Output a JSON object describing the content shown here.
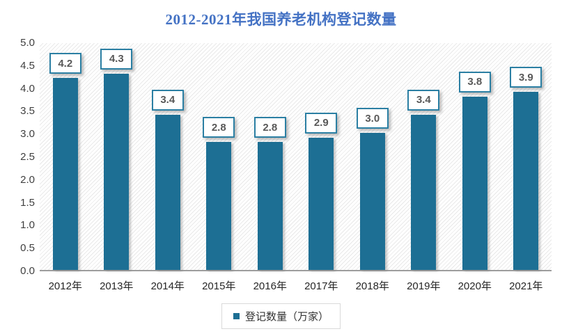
{
  "title": "2012-2021年我国养老机构登记数量",
  "chart_data": {
    "type": "bar",
    "title": "2012-2021年我国养老机构登记数量",
    "categories": [
      "2012年",
      "2013年",
      "2014年",
      "2015年",
      "2016年",
      "2017年",
      "2018年",
      "2019年",
      "2020年",
      "2021年"
    ],
    "values": [
      4.2,
      4.3,
      3.4,
      2.8,
      2.8,
      2.9,
      3.0,
      3.4,
      3.8,
      3.9
    ],
    "data_labels": [
      "4.2",
      "4.3",
      "3.4",
      "2.8",
      "2.8",
      "2.9",
      "3.0",
      "3.4",
      "3.8",
      "3.9"
    ],
    "xlabel": "",
    "ylabel": "",
    "ylim": [
      0,
      5
    ],
    "ytick_step": 0.5,
    "yticks": [
      "5.0",
      "4.5",
      "4.0",
      "3.5",
      "3.0",
      "2.5",
      "2.0",
      "1.5",
      "1.0",
      "0.5",
      "0.0"
    ],
    "grid": false,
    "legend": [
      "登记数量（万家）"
    ],
    "legend_position": "bottom",
    "plot_background": "diagonal-hatch"
  },
  "legend": {
    "label": "登记数量（万家）"
  },
  "colors": {
    "title": "#4472c4",
    "bar": "#1d6f94",
    "label_box_border": "#2b7fa3",
    "label_text": "#595959",
    "axis_line": "#9d9d9d",
    "tick_text": "#404040",
    "legend_border": "#d9d9d9"
  }
}
